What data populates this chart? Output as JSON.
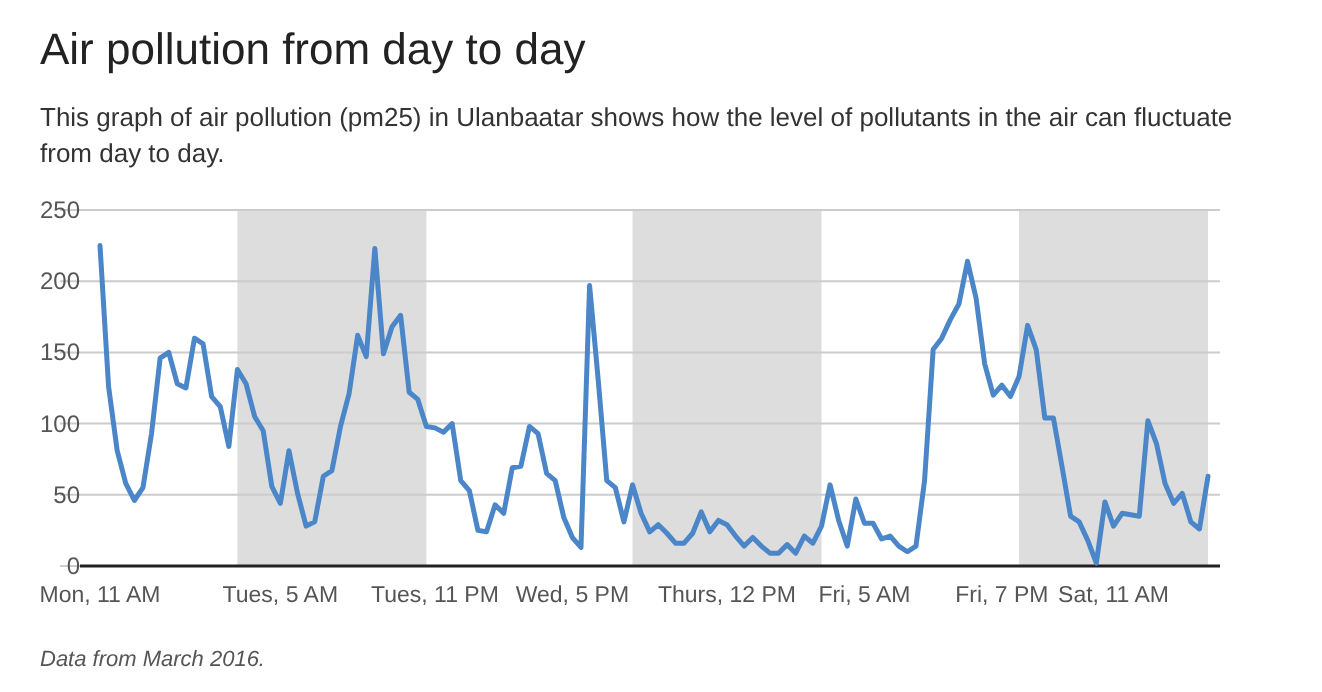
{
  "chart_data": {
    "type": "line",
    "title": "Air pollution from day to day",
    "subtitle": "This graph of air pollution (pm25) in Ulanbaatar shows how the level of pollutants in the air can fluctuate from day to day.",
    "annotations": [
      "Data from March 2016."
    ],
    "categories": [
      "Mon, 11 AM",
      null,
      null,
      null,
      null,
      null,
      null,
      null,
      null,
      null,
      null,
      null,
      null,
      null,
      null,
      null,
      null,
      null,
      null,
      null,
      null,
      "Tues, 5 AM",
      null,
      null,
      null,
      null,
      null,
      null,
      null,
      null,
      null,
      null,
      null,
      null,
      null,
      null,
      null,
      null,
      null,
      "Tues, 11 PM",
      null,
      null,
      null,
      null,
      null,
      null,
      null,
      null,
      null,
      null,
      null,
      null,
      null,
      null,
      null,
      "Wed, 5 PM",
      null,
      null,
      null,
      null,
      null,
      null,
      null,
      null,
      null,
      null,
      null,
      null,
      null,
      null,
      null,
      null,
      null,
      "Thurs, 12 PM",
      null,
      null,
      null,
      null,
      null,
      null,
      null,
      null,
      null,
      null,
      null,
      null,
      null,
      null,
      null,
      "Fri, 5 AM",
      null,
      null,
      null,
      null,
      null,
      null,
      null,
      null,
      null,
      null,
      null,
      null,
      null,
      null,
      null,
      "Fri, 7 PM",
      null,
      null,
      null,
      null,
      null,
      null,
      null,
      null,
      null,
      null,
      null,
      null,
      "Sat, 11 AM",
      null,
      null,
      null,
      null,
      null,
      null,
      null,
      null,
      null,
      null,
      null
    ],
    "series": [
      {
        "color": "#4a86c8",
        "values": [
          225,
          126,
          81,
          58,
          46,
          55,
          93,
          146,
          150,
          128,
          125,
          160,
          156,
          119,
          112,
          84,
          138,
          128,
          105,
          95,
          56,
          44,
          81,
          51,
          28,
          31,
          63,
          67,
          98,
          121,
          162,
          147,
          223,
          149,
          168,
          176,
          122,
          117,
          98,
          97,
          94,
          100,
          60,
          53,
          25,
          24,
          43,
          37,
          69,
          70,
          98,
          93,
          65,
          60,
          34,
          20,
          13,
          197,
          131,
          60,
          55,
          31,
          57,
          37,
          24,
          29,
          23,
          16,
          16,
          23,
          38,
          24,
          32,
          29,
          21,
          14,
          20,
          14,
          9,
          9,
          15,
          9,
          21,
          16,
          28,
          57,
          32,
          14,
          47,
          30,
          30,
          19,
          21,
          14,
          10,
          14,
          60,
          152,
          160,
          173,
          184,
          214,
          188,
          142,
          120,
          127,
          119,
          133,
          169,
          152,
          104,
          104,
          70,
          35,
          31,
          18,
          2,
          45,
          28,
          37,
          36,
          35,
          102,
          86,
          58,
          44,
          51,
          31,
          26,
          63
        ]
      }
    ],
    "ylim": [
      0,
      250
    ],
    "yticks": [
      0,
      50,
      100,
      150,
      200,
      250
    ],
    "grid": "y"
  }
}
